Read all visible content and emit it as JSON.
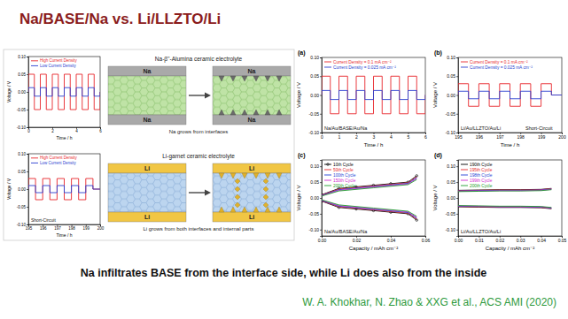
{
  "title": "Na/BASE/Na vs. Li/LLZTO/Li",
  "caption": "Na infiltrates BASE from the interface side, while Li does also from the inside",
  "citation": "W. A. Khokhar, N. Zhao & XXG et al., ACS AMI (2020)",
  "schematics": [
    {
      "title": "Na-β''-Alumina ceramic electrolyte",
      "electrode": "Na",
      "note": "Na grows from interfaces"
    },
    {
      "title": "Li-garnet ceramic electrolyte",
      "electrode": "Li",
      "note": "Li grows from both interfaces and internal parts"
    }
  ],
  "chart_data": [
    {
      "type": "line",
      "xlabel": "Time / h",
      "ylabel": "Voltage / V",
      "x": [
        0,
        0,
        0.5,
        0.5,
        1,
        1,
        1.5,
        1.5,
        2,
        2,
        2.5,
        2.5,
        3,
        3,
        3.5,
        3.5,
        4,
        4,
        4.5,
        4.5,
        5,
        5,
        5.5,
        5.5,
        6,
        6
      ],
      "series": [
        {
          "name": "High Current Density",
          "color": "#e8262b",
          "values": [
            0,
            0.05,
            0.05,
            -0.05,
            -0.05,
            0.05,
            0.05,
            -0.05,
            -0.05,
            0.05,
            0.05,
            -0.05,
            -0.05,
            0.05,
            0.05,
            -0.05,
            -0.05,
            0.05,
            0.05,
            -0.05,
            -0.05,
            0.05,
            0.05,
            -0.05,
            -0.05,
            0
          ]
        },
        {
          "name": "Low Current Density",
          "color": "#2a3fd0",
          "values": [
            0,
            0.012,
            0.012,
            -0.012,
            -0.012,
            0.012,
            0.012,
            -0.012,
            -0.012,
            0.012,
            0.012,
            -0.012,
            -0.012,
            0.012,
            0.012,
            -0.012,
            -0.012,
            0.012,
            0.012,
            -0.012,
            -0.012,
            0.012,
            0.012,
            -0.012,
            -0.012,
            0
          ]
        }
      ],
      "xlim": [
        0,
        6
      ],
      "ylim": [
        -0.1,
        0.1
      ],
      "xticks": [
        0,
        2,
        4,
        6
      ],
      "yticks": [
        {
          "value": -0.1,
          "label": "-0.10"
        },
        {
          "value": -0.05,
          "label": "-0.05"
        },
        {
          "value": 0,
          "label": "0.00"
        },
        {
          "value": 0.05,
          "label": "0.05"
        },
        {
          "value": 0.1,
          "label": "0.10"
        }
      ],
      "legend": "upper left"
    },
    {
      "type": "line",
      "xlabel": "Time / h",
      "ylabel": "Voltage / V",
      "annotations": [
        "Short-Circuit"
      ],
      "x": [
        195,
        195,
        195.5,
        195.5,
        196,
        196,
        196.5,
        196.5,
        197,
        197,
        197.5,
        197.5,
        198,
        198,
        198.5,
        198.5,
        199,
        199,
        199.5,
        199.5,
        200
      ],
      "series": [
        {
          "name": "High Current Density",
          "color": "#e8262b",
          "values": [
            0,
            0.03,
            0.03,
            -0.03,
            -0.03,
            0.03,
            0.03,
            -0.03,
            -0.03,
            0.03,
            0.03,
            -0.03,
            -0.03,
            0.03,
            0.03,
            -0.03,
            -0.03,
            0.03,
            0.03,
            0,
            0
          ]
        },
        {
          "name": "Low Current Density",
          "color": "#2a3fd0",
          "values": [
            0,
            0.01,
            0.01,
            -0.01,
            -0.01,
            0.01,
            0.01,
            -0.01,
            -0.01,
            0.01,
            0.01,
            -0.01,
            -0.01,
            0.01,
            0.01,
            -0.01,
            -0.01,
            0.01,
            0.01,
            0,
            0
          ]
        }
      ],
      "xlim": [
        195,
        200
      ],
      "ylim": [
        -0.1,
        0.1
      ],
      "xticks": [
        195,
        196,
        197,
        198,
        199,
        200
      ],
      "yticks": [
        {
          "value": -0.1,
          "label": "-0.10"
        },
        {
          "value": -0.05,
          "label": "-0.05"
        },
        {
          "value": 0,
          "label": "0.00"
        },
        {
          "value": 0.05,
          "label": "0.05"
        },
        {
          "value": 0.1,
          "label": "0.10"
        }
      ],
      "legend": "upper left"
    },
    {
      "type": "line",
      "title": "(a)",
      "xlabel": "Time / h",
      "ylabel": "Voltage / V",
      "annotations": [
        "Na/Au/BASE/Au/Na"
      ],
      "x": [
        0,
        0,
        0.5,
        0.5,
        1,
        1,
        1.5,
        1.5,
        2,
        2,
        2.5,
        2.5,
        3,
        3,
        3.5,
        3.5,
        4,
        4,
        4.5,
        4.5,
        5,
        5,
        5.5,
        5.5,
        6,
        6
      ],
      "series": [
        {
          "name": "Current Density = 0.1 mA cm⁻²",
          "color": "#e8262b",
          "values": [
            0,
            0.05,
            0.05,
            -0.05,
            -0.05,
            0.05,
            0.05,
            -0.05,
            -0.05,
            0.05,
            0.05,
            -0.05,
            -0.05,
            0.05,
            0.05,
            -0.05,
            -0.05,
            0.05,
            0.05,
            -0.05,
            -0.05,
            0.05,
            0.05,
            -0.05,
            -0.05,
            0
          ]
        },
        {
          "name": "Current Density = 0.025 mA cm⁻²",
          "color": "#2a3fd0",
          "values": [
            0,
            0.012,
            0.012,
            -0.012,
            -0.012,
            0.012,
            0.012,
            -0.012,
            -0.012,
            0.012,
            0.012,
            -0.012,
            -0.012,
            0.012,
            0.012,
            -0.012,
            -0.012,
            0.012,
            0.012,
            -0.012,
            -0.012,
            0.012,
            0.012,
            -0.012,
            -0.012,
            0
          ]
        }
      ],
      "xlim": [
        0,
        6
      ],
      "ylim": [
        -0.1,
        0.1
      ],
      "xticks": [
        0,
        1,
        2,
        3,
        4,
        5,
        6
      ],
      "yticks": [
        {
          "value": -0.1,
          "label": "-0.10"
        },
        {
          "value": -0.05,
          "label": "-0.05"
        },
        {
          "value": 0,
          "label": "0.00"
        },
        {
          "value": 0.05,
          "label": "0.05"
        },
        {
          "value": 0.1,
          "label": "0.10"
        }
      ],
      "legend": "upper left"
    },
    {
      "type": "line",
      "title": "(b)",
      "xlabel": "Time / h",
      "ylabel": "Voltage / V",
      "annotations": [
        "Li/Au/LLZTO/Au/Li",
        "Short-Circuit"
      ],
      "x": [
        195,
        195,
        195.5,
        195.5,
        196,
        196,
        196.5,
        196.5,
        197,
        197,
        197.5,
        197.5,
        198,
        198,
        198.5,
        198.5,
        199,
        199,
        199.5,
        199.5,
        200
      ],
      "series": [
        {
          "name": "Current Density = 0.1 mA cm⁻²",
          "color": "#e8262b",
          "values": [
            0,
            0.03,
            0.03,
            -0.03,
            -0.03,
            0.03,
            0.03,
            -0.03,
            -0.03,
            0.03,
            0.03,
            -0.03,
            -0.03,
            0.03,
            0.03,
            -0.03,
            -0.03,
            0.03,
            0.03,
            0,
            0
          ]
        },
        {
          "name": "Current Density = 0.025 mA cm⁻²",
          "color": "#2a3fd0",
          "values": [
            0,
            0.01,
            0.01,
            -0.01,
            -0.01,
            0.01,
            0.01,
            -0.01,
            -0.01,
            0.01,
            0.01,
            -0.01,
            -0.01,
            0.01,
            0.01,
            -0.01,
            -0.01,
            0.01,
            0.01,
            0,
            0
          ]
        }
      ],
      "xlim": [
        195,
        200
      ],
      "ylim": [
        -0.1,
        0.1
      ],
      "xticks": [
        195,
        196,
        197,
        198,
        199,
        200
      ],
      "yticks": [
        {
          "value": -0.1,
          "label": "-0.10"
        },
        {
          "value": -0.05,
          "label": "-0.05"
        },
        {
          "value": 0,
          "label": "0.00"
        },
        {
          "value": 0.05,
          "label": "0.05"
        },
        {
          "value": 0.1,
          "label": "0.10"
        }
      ],
      "legend": "upper left"
    },
    {
      "type": "line",
      "title": "(c)",
      "xlabel": "Capacity / mAh cm⁻²",
      "ylabel": "Voltage / V",
      "annotations": [
        "Na/Au/BASE/Au/Na"
      ],
      "x": [
        0,
        0.01,
        0.02,
        0.03,
        0.04,
        0.05,
        0.055,
        0,
        0,
        0.01,
        0.02,
        0.03,
        0.04,
        0.05,
        0.055
      ],
      "series": [
        {
          "name": "10th Cycle",
          "color": "#000000",
          "marker": "circle",
          "values": [
            0.01,
            0.03,
            0.035,
            0.04,
            0.045,
            0.05,
            0.07,
            null,
            -0.01,
            -0.03,
            -0.035,
            -0.04,
            -0.045,
            -0.05,
            -0.07
          ]
        },
        {
          "name": "50th Cycle",
          "color": "#e8262b",
          "values": [
            0.009,
            0.028,
            0.033,
            0.038,
            0.043,
            0.048,
            0.067,
            null,
            -0.009,
            -0.028,
            -0.033,
            -0.038,
            -0.043,
            -0.048,
            -0.067
          ]
        },
        {
          "name": "100th Cycle",
          "color": "#1f3fd6",
          "values": [
            0.008,
            0.026,
            0.031,
            0.036,
            0.041,
            0.046,
            0.064,
            null,
            -0.008,
            -0.026,
            -0.031,
            -0.036,
            -0.041,
            -0.046,
            -0.064
          ]
        },
        {
          "name": "150th Cycle",
          "color": "#d12ad1",
          "values": [
            0.007,
            0.024,
            0.029,
            0.034,
            0.039,
            0.044,
            0.061,
            null,
            -0.007,
            -0.024,
            -0.029,
            -0.034,
            -0.039,
            -0.044,
            -0.061
          ]
        },
        {
          "name": "200th Cycle",
          "color": "#1d9e2e",
          "values": [
            0.006,
            0.022,
            0.027,
            0.032,
            0.037,
            0.042,
            0.058,
            null,
            -0.006,
            -0.022,
            -0.027,
            -0.032,
            -0.037,
            -0.042,
            -0.058
          ]
        }
      ],
      "xlim": [
        0,
        0.06
      ],
      "ylim": [
        -0.12,
        0.12
      ],
      "xticks": [
        {
          "value": 0,
          "label": "0.00"
        },
        {
          "value": 0.02,
          "label": "0.02"
        },
        {
          "value": 0.04,
          "label": "0.04"
        },
        {
          "value": 0.06,
          "label": "0.06"
        }
      ],
      "yticks": [
        {
          "value": -0.1,
          "label": "-0.10"
        },
        {
          "value": -0.05,
          "label": "-0.05"
        },
        {
          "value": 0,
          "label": "0.00"
        },
        {
          "value": 0.05,
          "label": "0.05"
        },
        {
          "value": 0.1,
          "label": "0.10"
        }
      ],
      "legend": "upper left"
    },
    {
      "type": "line",
      "title": "(d)",
      "xlabel": "Capacity / mAh cm⁻²",
      "ylabel": "Voltage / V",
      "annotations": [
        "Li/Au/LLZTO/Au/Li"
      ],
      "x": [
        0,
        0.01,
        0.02,
        0.03,
        0.04,
        0.045,
        0,
        0,
        0.01,
        0.02,
        0.03,
        0.04,
        0.045
      ],
      "series": [
        {
          "name": "190th Cycle",
          "color": "#000000",
          "values": [
            0.024,
            0.025,
            0.026,
            0.026,
            0.027,
            0.03,
            null,
            -0.028,
            -0.029,
            -0.03,
            -0.03,
            -0.031,
            -0.034
          ]
        },
        {
          "name": "195th Cycle",
          "color": "#e8262b",
          "values": [
            0.023,
            0.024,
            0.025,
            0.025,
            0.026,
            0.029,
            null,
            -0.027,
            -0.028,
            -0.029,
            -0.029,
            -0.03,
            -0.033
          ]
        },
        {
          "name": "198th Cycle",
          "color": "#1f3fd6",
          "values": [
            0.022,
            0.023,
            0.024,
            0.024,
            0.025,
            0.028,
            null,
            -0.026,
            -0.027,
            -0.028,
            -0.028,
            -0.029,
            -0.032
          ]
        },
        {
          "name": "199th Cycle",
          "color": "#d12ad1",
          "values": [
            0.021,
            0.022,
            0.023,
            0.023,
            0.024,
            0.027,
            null,
            -0.025,
            -0.026,
            -0.027,
            -0.027,
            -0.028,
            -0.031
          ]
        },
        {
          "name": "200th Cycle",
          "color": "#1d9e2e",
          "values": [
            0.02,
            0.021,
            0.022,
            0.022,
            0.023,
            0.026,
            null,
            -0.024,
            -0.025,
            -0.026,
            -0.026,
            -0.027,
            -0.03
          ]
        }
      ],
      "xlim": [
        0,
        0.05
      ],
      "ylim": [
        -0.12,
        0.12
      ],
      "xticks": [
        {
          "value": 0,
          "label": "0.00"
        },
        {
          "value": 0.01,
          "label": "0.01"
        },
        {
          "value": 0.02,
          "label": "0.02"
        },
        {
          "value": 0.03,
          "label": "0.03"
        },
        {
          "value": 0.04,
          "label": "0.04"
        },
        {
          "value": 0.05,
          "label": "0.05"
        }
      ],
      "yticks": [
        {
          "value": -0.1,
          "label": "-0.10"
        },
        {
          "value": -0.05,
          "label": "-0.05"
        },
        {
          "value": 0,
          "label": "0.00"
        },
        {
          "value": 0.05,
          "label": "0.05"
        },
        {
          "value": 0.1,
          "label": "0.10"
        }
      ],
      "legend": "upper left"
    }
  ]
}
